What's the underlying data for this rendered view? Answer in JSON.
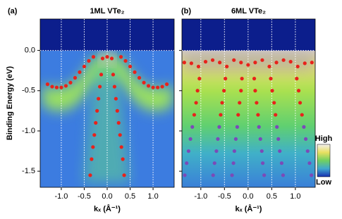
{
  "chart_data": [
    {
      "type": "scatter",
      "panel_label": "(a)",
      "title": "1ML VTe₂",
      "xlabel": "kₓ (Å⁻¹)",
      "ylabel": "Binding Energy (eV)",
      "xlim": [
        -1.46,
        1.46
      ],
      "ylim": [
        -1.7,
        0.39
      ],
      "xticks": [
        {
          "value": -1.0,
          "label": "-1.0"
        },
        {
          "value": -0.5,
          "label": "-0.5"
        },
        {
          "value": 0,
          "label": "0.0"
        },
        {
          "value": 0.5,
          "label": "0.5"
        },
        {
          "value": 1.0,
          "label": "1.0"
        }
      ],
      "yticks": [
        {
          "value": 0,
          "label": "0.0"
        },
        {
          "value": -0.5,
          "label": "-0.5"
        },
        {
          "value": -1.0,
          "label": "-1.0"
        },
        {
          "value": -1.5,
          "label": "-1.5"
        }
      ],
      "ytick_labels": true,
      "grid": true,
      "series": [
        {
          "color": "#e8221b",
          "x": [
            -1.3,
            -1.2,
            -1.1,
            -1.0,
            -0.9,
            -0.8,
            -0.7,
            -0.6,
            -0.5,
            -0.4,
            -0.3,
            0.3,
            0.4,
            0.5,
            0.6,
            0.7,
            0.8,
            0.9,
            1.0,
            1.1,
            1.2,
            1.3,
            -0.1,
            0,
            0.1,
            -0.13,
            -0.16,
            -0.19,
            -0.22,
            -0.25,
            -0.28,
            -0.31,
            -0.34,
            -0.37,
            0.13,
            0.16,
            0.19,
            0.22,
            0.25,
            0.28,
            0.31,
            0.34,
            0.37
          ],
          "y": [
            -0.42,
            -0.45,
            -0.46,
            -0.46,
            -0.44,
            -0.4,
            -0.34,
            -0.27,
            -0.2,
            -0.13,
            -0.08,
            -0.08,
            -0.13,
            -0.2,
            -0.27,
            -0.34,
            -0.4,
            -0.44,
            -0.46,
            -0.46,
            -0.45,
            -0.42,
            -0.1,
            -0.08,
            -0.1,
            -0.3,
            -0.45,
            -0.6,
            -0.75,
            -0.9,
            -1.05,
            -1.2,
            -1.35,
            -1.55,
            -0.3,
            -0.45,
            -0.6,
            -0.75,
            -0.9,
            -1.05,
            -1.2,
            -1.35,
            -1.55
          ]
        }
      ]
    },
    {
      "type": "scatter",
      "panel_label": "(b)",
      "title": "6ML VTe₂",
      "xlabel": "kₓ (Å⁻¹)",
      "xlim": [
        -1.4,
        1.42
      ],
      "ylim": [
        -1.7,
        0.39
      ],
      "xticks": [
        {
          "value": -1.0,
          "label": "-1.0"
        },
        {
          "value": -0.5,
          "label": "-0.5"
        },
        {
          "value": 0,
          "label": "0.0"
        },
        {
          "value": 0.5,
          "label": "0.5"
        },
        {
          "value": 1.0,
          "label": "1.0"
        }
      ],
      "yticks": [
        0,
        -0.5,
        -1,
        -1.5
      ],
      "ytick_labels": false,
      "grid": true,
      "series": [
        {
          "color": "#e8221b",
          "x": [
            -1.35,
            -1.2,
            -1.05,
            -0.9,
            -0.75,
            -0.6,
            -0.45,
            -0.3,
            -0.15,
            0,
            0.15,
            0.3,
            0.45,
            0.6,
            0.75,
            0.9,
            1.05,
            1.2,
            1.35,
            -0.13,
            -0.15,
            -0.18,
            -0.21,
            0.13,
            0.15,
            0.18,
            0.21,
            -0.48,
            -0.51,
            -0.55,
            -0.58,
            0.48,
            0.51,
            0.55,
            0.58,
            -1.03,
            -1.07,
            -1.1,
            -1.14,
            1.03,
            1.07,
            1.1,
            1.14
          ],
          "y": [
            -0.15,
            -0.16,
            -0.2,
            -0.14,
            -0.12,
            -0.15,
            -0.2,
            -0.12,
            -0.15,
            -0.18,
            -0.15,
            -0.12,
            -0.2,
            -0.15,
            -0.12,
            -0.14,
            -0.2,
            -0.16,
            -0.15,
            -0.35,
            -0.5,
            -0.65,
            -0.8,
            -0.35,
            -0.5,
            -0.65,
            -0.8,
            -0.35,
            -0.5,
            -0.65,
            -0.8,
            -0.35,
            -0.5,
            -0.65,
            -0.8,
            -0.35,
            -0.5,
            -0.65,
            -0.8,
            -0.35,
            -0.5,
            -0.65,
            -0.8
          ]
        },
        {
          "color": "#7b4ab8",
          "x": [
            -0.23,
            -0.26,
            -0.29,
            -0.31,
            -0.34,
            0.23,
            0.26,
            0.29,
            0.31,
            0.34,
            -0.61,
            -0.64,
            -0.67,
            -0.71,
            -0.74,
            0.61,
            0.64,
            0.67,
            0.71,
            0.74,
            -1.18,
            -1.22,
            -1.26,
            -1.3,
            -1.34,
            1.18,
            1.22,
            1.26,
            1.3,
            1.34
          ],
          "y": [
            -0.95,
            -1.1,
            -1.25,
            -1.4,
            -1.55,
            -0.95,
            -1.1,
            -1.25,
            -1.4,
            -1.55,
            -0.95,
            -1.1,
            -1.25,
            -1.4,
            -1.55,
            -0.95,
            -1.1,
            -1.25,
            -1.4,
            -1.55,
            -0.95,
            -1.1,
            -1.25,
            -1.4,
            -1.55,
            -0.95,
            -1.1,
            -1.25,
            -1.4,
            -1.55
          ]
        }
      ]
    }
  ],
  "colorbar": {
    "high": "High",
    "low": "Low"
  }
}
